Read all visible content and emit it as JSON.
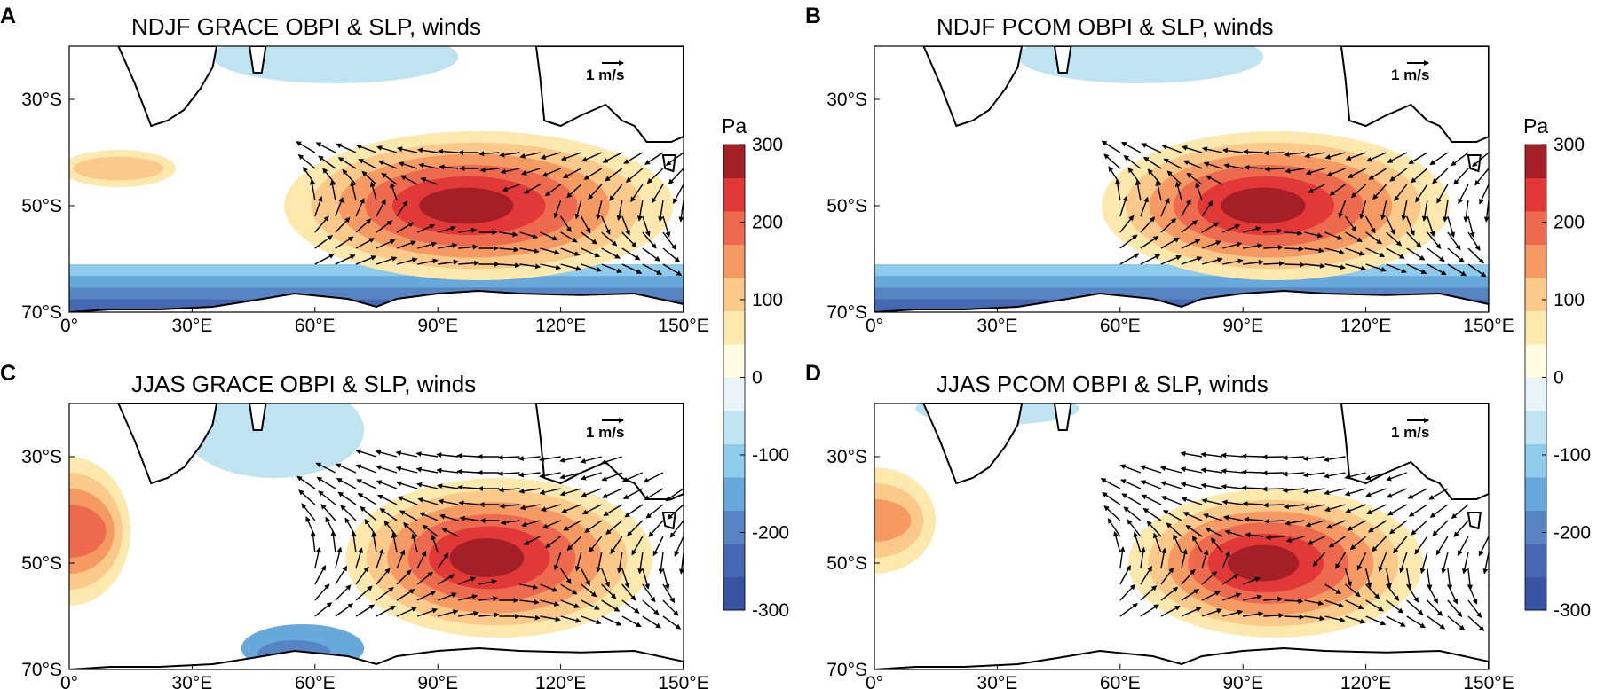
{
  "chart_data": {
    "type": "contour-map",
    "colorbar": {
      "unit": "Pa",
      "ticks": [
        "300",
        "200",
        "100",
        "0",
        "-100",
        "-200",
        "-300"
      ],
      "levels": [
        -300,
        -250,
        -200,
        -150,
        -100,
        -50,
        0,
        50,
        100,
        150,
        200,
        250,
        300
      ],
      "colors": [
        "#3853a4",
        "#4668b2",
        "#5784c2",
        "#68a9dc",
        "#8fcbea",
        "#bfe3f0",
        "#e8f4f7",
        "#fefbe3",
        "#fde9ad",
        "#fbc98a",
        "#f59a63",
        "#ee6a4f",
        "#e23838",
        "#a51f27"
      ]
    },
    "lon_ticks": [
      "0°",
      "30°E",
      "60°E",
      "90°E",
      "120°E",
      "150°E"
    ],
    "lat_ticks": [
      "30°S",
      "50°S",
      "70°S"
    ],
    "lon_range": [
      0,
      150
    ],
    "lat_range": [
      -70,
      -20
    ],
    "panels": [
      {
        "label": "A",
        "title": "NDJF GRACE OBPI & SLP, winds",
        "ref_vector": "1 m/s",
        "anomaly": {
          "center_lon": 100,
          "center_lat": -50,
          "max": 300,
          "width_lon": 95,
          "height_lat": 28
        },
        "winds_region": [
          [
            -40,
            60
          ],
          [
            -62,
            150
          ]
        ]
      },
      {
        "label": "B",
        "title": "NDJF PCOM OBPI & SLP, winds",
        "ref_vector": "1 m/s",
        "anomaly": {
          "center_lon": 98,
          "center_lat": -50,
          "max": 300,
          "width_lon": 85,
          "height_lat": 28
        },
        "winds_region": [
          [
            -40,
            60
          ],
          [
            -62,
            150
          ]
        ]
      },
      {
        "label": "C",
        "title": "JJAS GRACE OBPI & SLP, winds",
        "ref_vector": "1 m/s",
        "anomaly": {
          "center_lon": 105,
          "center_lat": -49,
          "max": 300,
          "width_lon": 75,
          "height_lat": 30
        },
        "winds_region": [
          [
            -30,
            60
          ],
          [
            -62,
            150
          ]
        ]
      },
      {
        "label": "D",
        "title": "JJAS PCOM OBPI & SLP, winds",
        "ref_vector": "1 m/s",
        "anomaly": {
          "center_lon": 98,
          "center_lat": -50,
          "max": 300,
          "width_lon": 72,
          "height_lat": 28
        },
        "winds_region": [
          [
            -30,
            60
          ],
          [
            -62,
            150
          ]
        ]
      }
    ]
  }
}
